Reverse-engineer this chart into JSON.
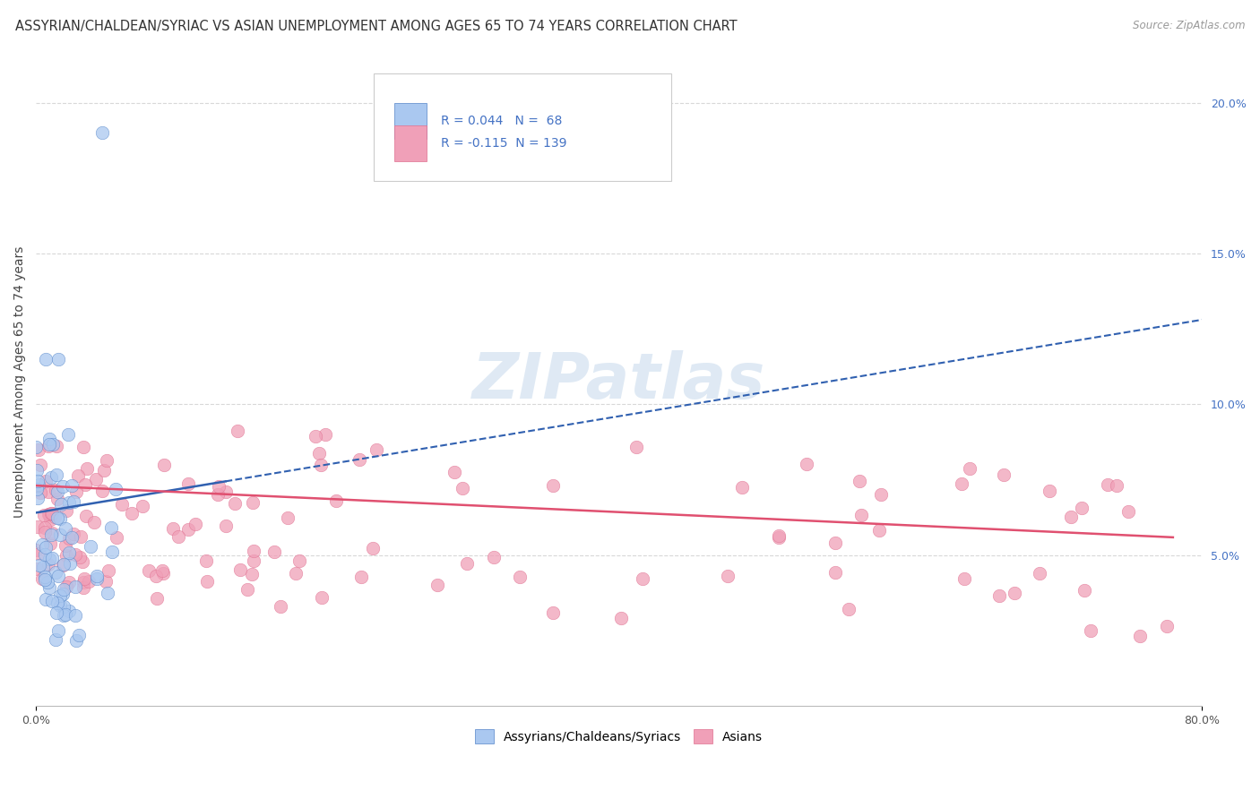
{
  "title": "ASSYRIAN/CHALDEAN/SYRIAC VS ASIAN UNEMPLOYMENT AMONG AGES 65 TO 74 YEARS CORRELATION CHART",
  "source": "Source: ZipAtlas.com",
  "ylabel": "Unemployment Among Ages 65 to 74 years",
  "right_yticks": [
    "20.0%",
    "15.0%",
    "10.0%",
    "5.0%"
  ],
  "right_ytick_vals": [
    0.2,
    0.15,
    0.1,
    0.05
  ],
  "blue_color": "#aac8f0",
  "pink_color": "#f0a0b8",
  "blue_edge_color": "#5585c8",
  "pink_edge_color": "#e07090",
  "blue_line_color": "#3060b0",
  "pink_line_color": "#e05070",
  "background_color": "#ffffff",
  "grid_color": "#d8d8d8",
  "xlim": [
    0.0,
    0.8
  ],
  "ylim": [
    0.0,
    0.215
  ],
  "watermark": "ZIPatlas",
  "title_fontsize": 10.5,
  "label_fontsize": 10,
  "tick_fontsize": 9,
  "legend_R_color": "#4472c4",
  "legend_N_color": "#4472c4"
}
